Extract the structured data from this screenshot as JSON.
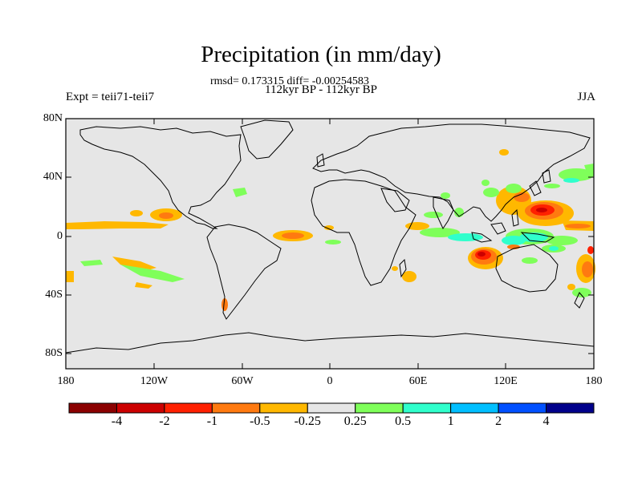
{
  "title": "Precipitation (in mm/day)",
  "stats": "rmsd= 0.173315 diff= -0.00254583",
  "period": "112kyr BP - 112kyr BP",
  "expt": "Expt = teii71-teii7",
  "season": "JJA",
  "lat_labels": [
    "80N",
    "40N",
    "0",
    "40S",
    "80S"
  ],
  "lon_labels": [
    "180",
    "120W",
    "60W",
    "0",
    "60E",
    "120E",
    "180"
  ],
  "colorbar": {
    "colors": [
      "#8b0000",
      "#cc0000",
      "#ff2000",
      "#ff7a10",
      "#ffb800",
      "#e6e6e6",
      "#7fff5a",
      "#30ffcc",
      "#00bfff",
      "#0050ff",
      "#00008b"
    ],
    "labels": [
      "-4",
      "-2",
      "-1",
      "-0.5",
      "-0.25",
      "0.25",
      "0.5",
      "1",
      "2",
      "4"
    ]
  }
}
